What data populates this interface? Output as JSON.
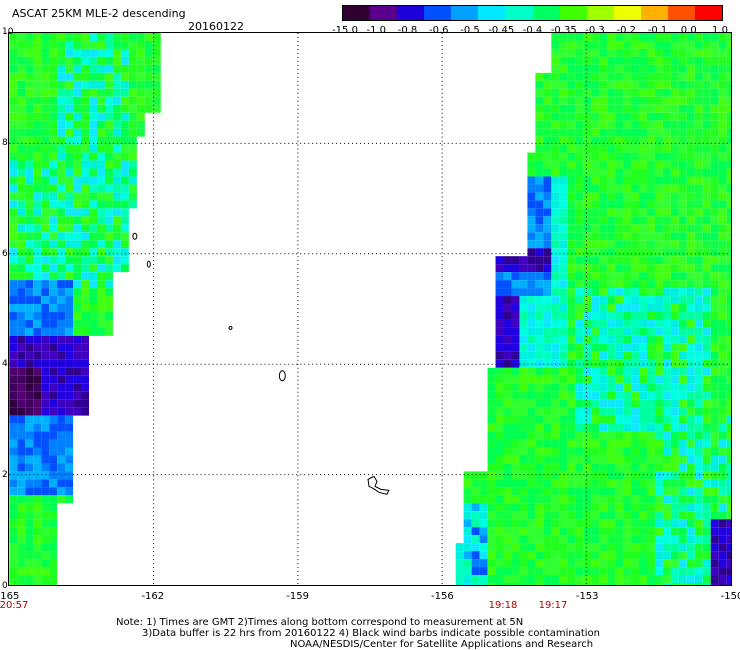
{
  "header": {
    "title": "ASCAT 25KM MLE-2 descending",
    "date": "20160122"
  },
  "colorbar": {
    "labels": [
      "-15.0",
      "-1.0",
      "-0.8",
      "-0.6",
      "-0.5",
      "-0.45",
      "-0.4",
      "-0.35",
      "-0.3",
      "-0.2",
      "-0.1",
      "0.0",
      "1.0"
    ],
    "colors": [
      "#300030",
      "#5a008c",
      "#1e00dc",
      "#0050ff",
      "#00a0ff",
      "#00e8ff",
      "#00ffc8",
      "#00ff60",
      "#40ff00",
      "#a0ff00",
      "#f0ff00",
      "#ffb000",
      "#ff5000",
      "#ff0000"
    ]
  },
  "map": {
    "x_ticks": [
      "-165",
      "-162",
      "-159",
      "-156",
      "-153",
      "-150"
    ],
    "y_ticks": [
      "10",
      "8",
      "6",
      "4",
      "2",
      "0"
    ],
    "times": [
      "20:57",
      "19:18",
      "19:17"
    ]
  },
  "notes": [
    "Note: 1) Times are GMT 2)Times along bottom correspond to measurement at 5N",
    "3)Data buffer is 22 hrs from 20160122 4) Black wind barbs indicate possible contamination",
    "NOAA/NESDIS/Center for Satellite Applications and Research"
  ]
}
